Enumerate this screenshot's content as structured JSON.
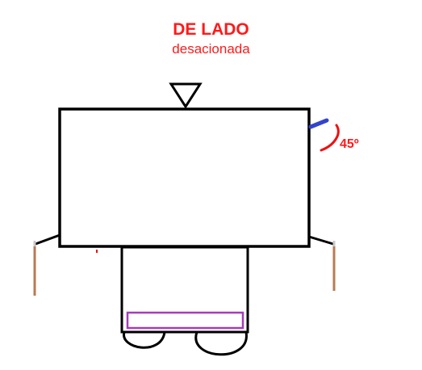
{
  "diagram": {
    "title": "DE LADO",
    "subtitle": "desacionada",
    "angle_label": "45º"
  },
  "colors": {
    "text": "#ff1a1a",
    "outline": "#000000",
    "blue_mark": "#3344cc",
    "red_arc": "#ee1111",
    "legs": "#b87a55",
    "leg_tips": "#c8c8c8",
    "purple_bar": "#a53cb8"
  }
}
